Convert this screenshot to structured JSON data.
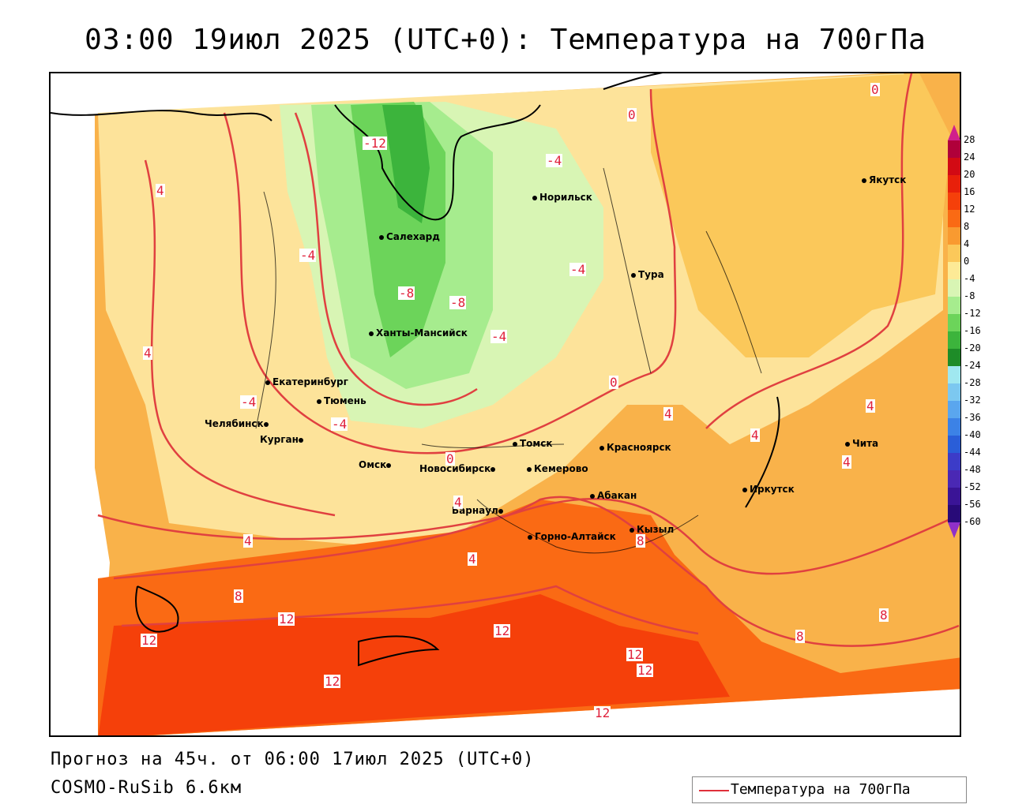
{
  "title": "03:00 19июл 2025 (UTC+0): Температура на 700гПа",
  "footer": {
    "forecast": "Прогноз на 45ч. от 06:00 17июл 2025 (UTC+0)",
    "model": "COSMO-RuSib 6.6км"
  },
  "legend": {
    "label": "Температура на 700гПа",
    "line_color": "#e0303a"
  },
  "colorbar": {
    "ticks": [
      "28",
      "24",
      "20",
      "16",
      "12",
      "8",
      "4",
      "0",
      "-4",
      "-8",
      "-12",
      "-16",
      "-20",
      "-24",
      "-28",
      "-32",
      "-36",
      "-40",
      "-44",
      "-48",
      "-52",
      "-56",
      "-60"
    ],
    "colors": [
      "#b0003a",
      "#d20a14",
      "#e8200a",
      "#f5400a",
      "#fa6a14",
      "#f99a30",
      "#fbc85a",
      "#fdea96",
      "#d8f5b4",
      "#a6ec8e",
      "#6cd45a",
      "#3cb43c",
      "#1e8c28",
      "#a0e8f0",
      "#7cc8f0",
      "#5aa6ee",
      "#3c82e6",
      "#2a5ed8",
      "#3c3cc8",
      "#4a28b4",
      "#3a1496",
      "#280a78"
    ],
    "top_color": "#d0208c",
    "bottom_color": "#9030c8"
  },
  "cities": [
    {
      "name": "Салехард"
    },
    {
      "name": "Норильск"
    },
    {
      "name": "Якутск"
    },
    {
      "name": "Тура"
    },
    {
      "name": "Ханты-Мансийск"
    },
    {
      "name": "Екатеринбург"
    },
    {
      "name": "Тюмень"
    },
    {
      "name": "Челябинск"
    },
    {
      "name": "Курган"
    },
    {
      "name": "Омск"
    },
    {
      "name": "Новосибирск"
    },
    {
      "name": "Томск"
    },
    {
      "name": "Кемерово"
    },
    {
      "name": "Красноярск"
    },
    {
      "name": "Барнаул"
    },
    {
      "name": "Абакан"
    },
    {
      "name": "Горно-Алтайск"
    },
    {
      "name": "Кызыл"
    },
    {
      "name": "Иркутск"
    },
    {
      "name": "Чита"
    }
  ],
  "contour_labels": [
    "-12",
    "-4",
    "-4",
    "4",
    "-4",
    "-8",
    "-8",
    "-4",
    "4",
    "0",
    "-4",
    "0",
    "4",
    "0",
    "4",
    "4",
    "4",
    "4",
    "4",
    "8",
    "8",
    "8",
    "12",
    "12",
    "12",
    "12",
    "12",
    "12",
    "12",
    "8",
    "0",
    "4",
    "-4"
  ]
}
